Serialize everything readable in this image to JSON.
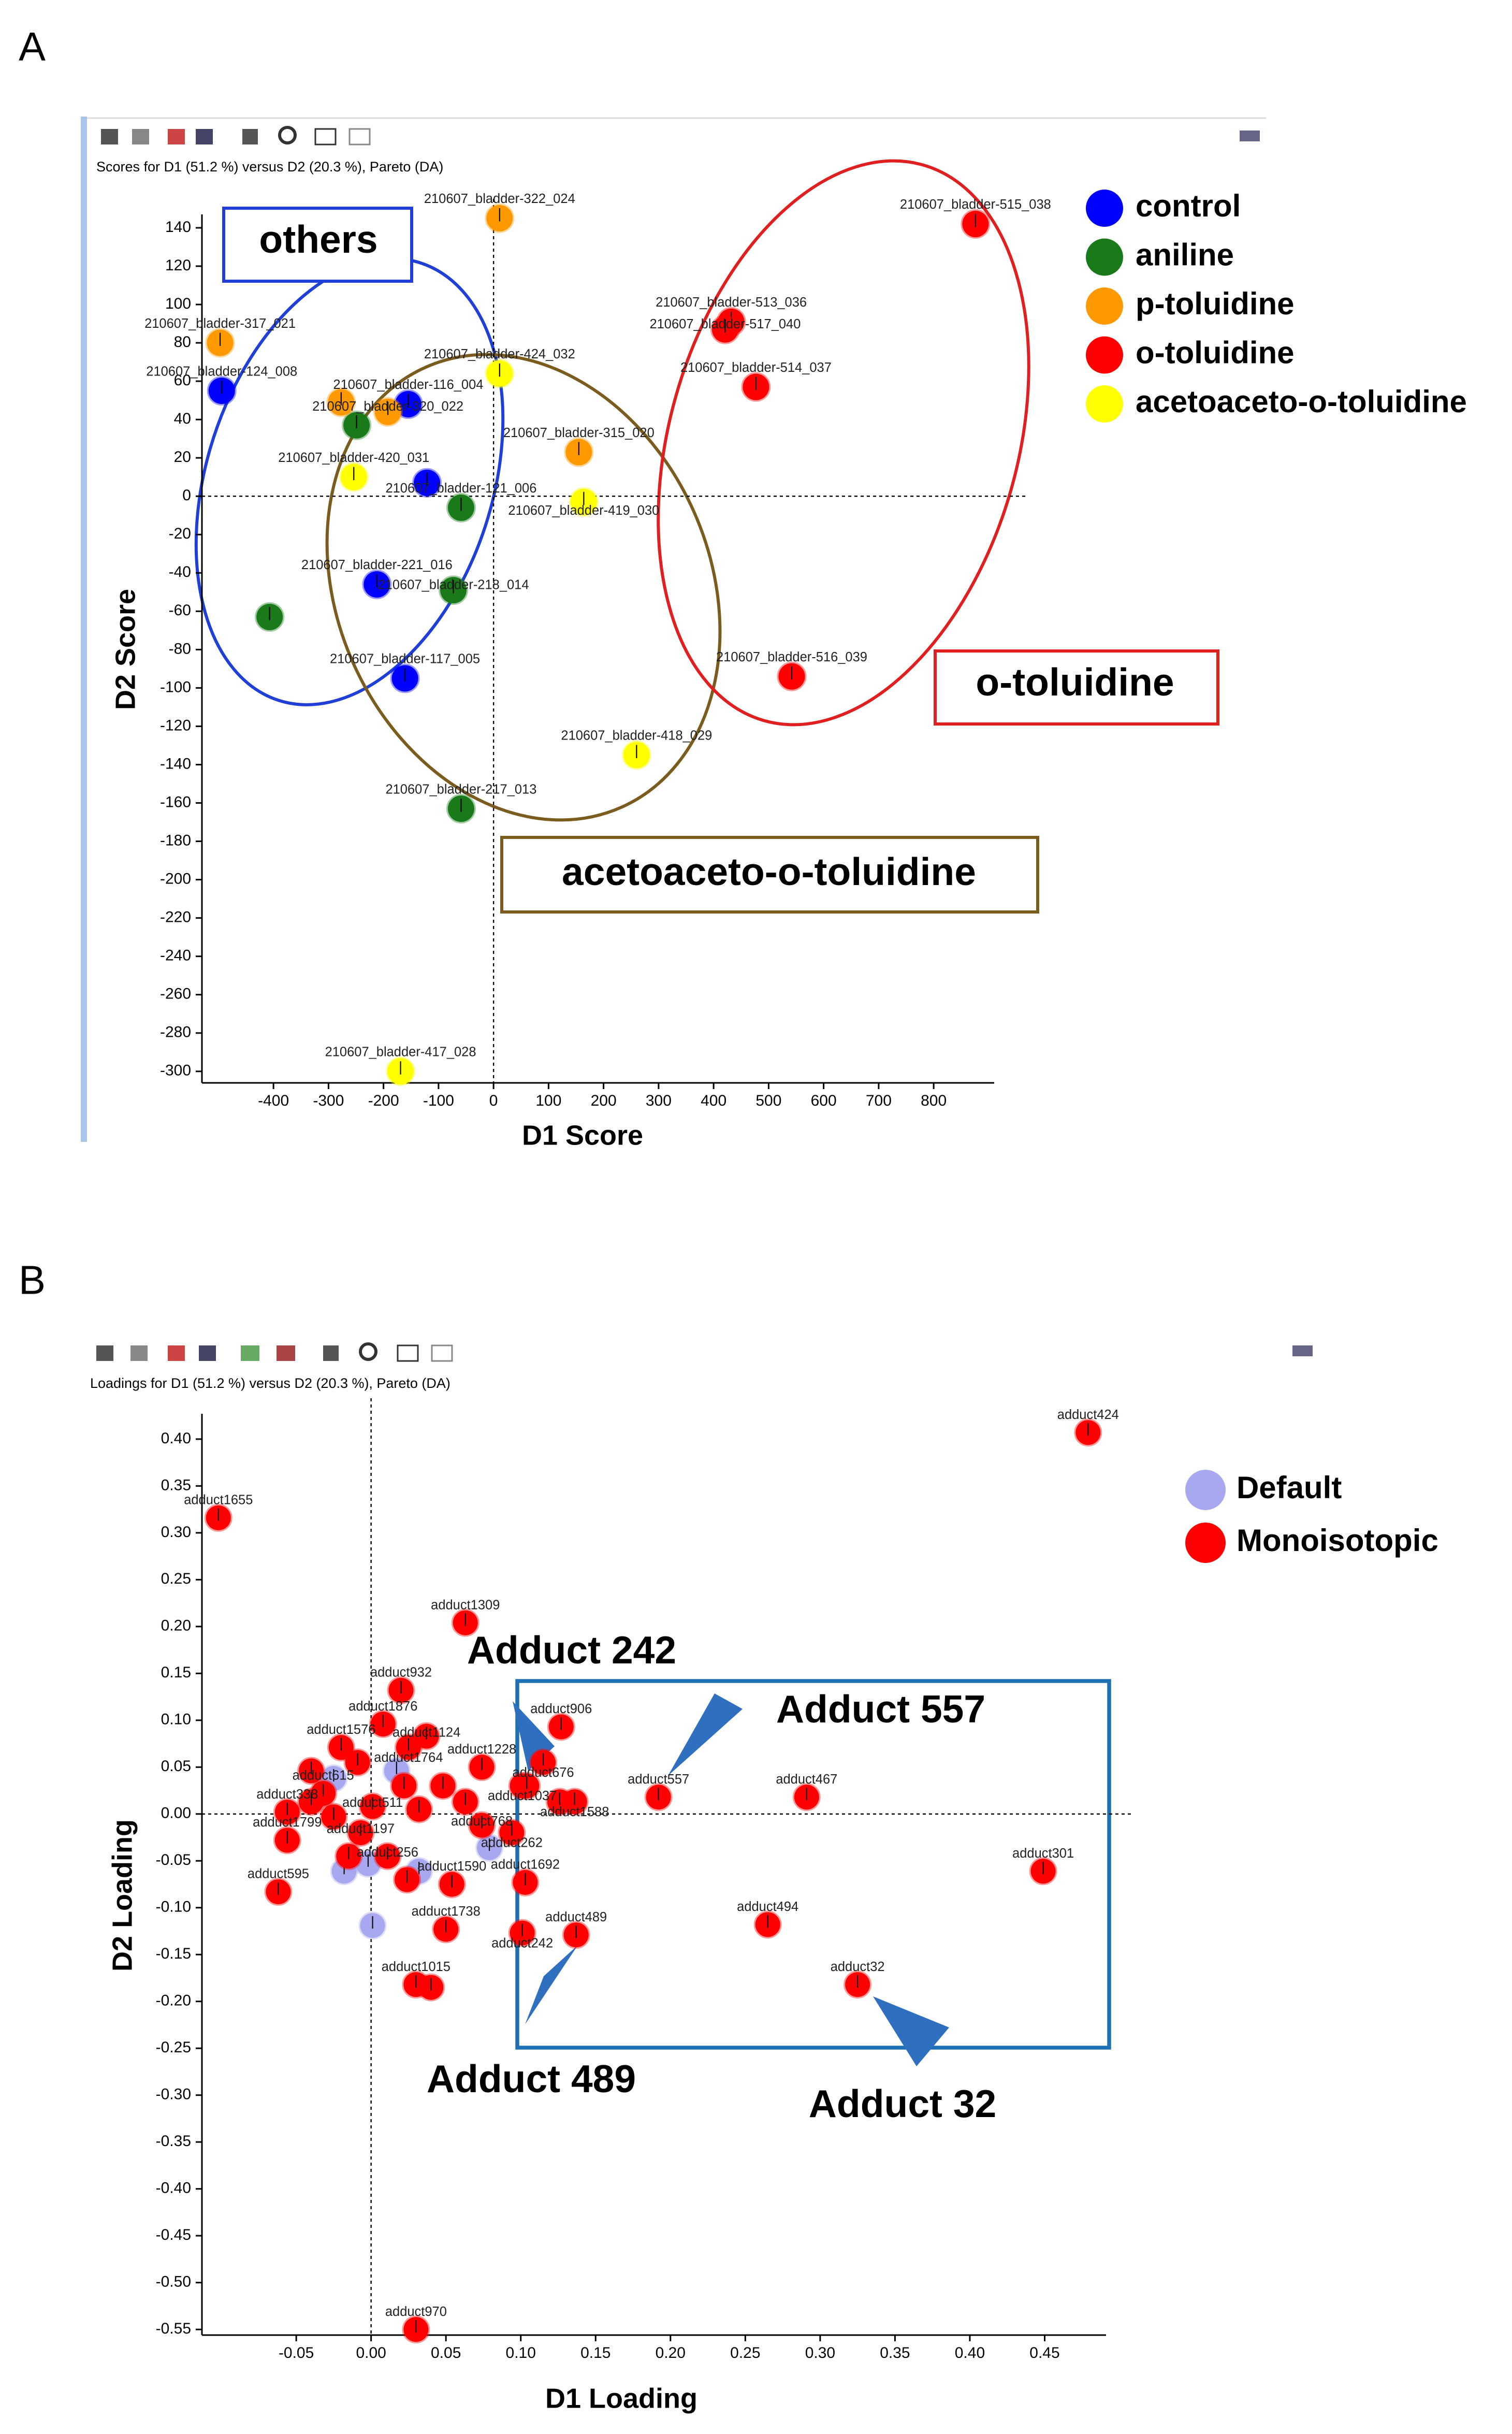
{
  "chart_data": [
    {
      "type": "scatter",
      "panel": "A",
      "subtitle": "Scores for D1 (51.2 %) versus D2 (20.3 %), Pareto (DA)",
      "x_label": "D1 Score",
      "y_label": "D2 Score",
      "xlim": [
        -530,
        910
      ],
      "ylim": [
        -306,
        147
      ],
      "xticks": [
        -400,
        -300,
        -200,
        -100,
        0,
        100,
        200,
        300,
        400,
        500,
        600,
        700,
        800
      ],
      "yticks": [
        140,
        120,
        100,
        80,
        60,
        40,
        20,
        0,
        -20,
        -40,
        -60,
        -80,
        -100,
        -120,
        -140,
        -160,
        -180,
        -200,
        -220,
        -240,
        -260,
        -280,
        -300
      ],
      "annotations": [
        "others",
        "o-toluidine",
        "acetoaceto-o-toluidine"
      ],
      "series": [
        {
          "name": "control",
          "color": "#0000ff",
          "x": [
            -494,
            -155,
            -121,
            -212,
            -161
          ],
          "y": [
            55,
            48,
            7,
            -46,
            -95
          ],
          "labels": [
            "210607_bladder-124_008",
            "210607_bladder-116_004",
            null,
            "210607_bladder-221_016",
            "210607_bladder-117_005"
          ]
        },
        {
          "name": "aniline",
          "color": "#1a7a1a",
          "x": [
            -249,
            -59,
            -73,
            -407,
            -59
          ],
          "y": [
            37,
            -6,
            -49,
            -63,
            -163
          ],
          "labels": [
            null,
            "210607_bladder-121_006",
            "210607_bladder-218_014",
            null,
            "210607_bladder-217_013"
          ]
        },
        {
          "name": "p-toluidine",
          "color": "#ff9900",
          "x": [
            11,
            -497,
            -277,
            -192,
            155
          ],
          "y": [
            145,
            80,
            49,
            44,
            23
          ],
          "labels": [
            "210607_bladder-322_024",
            "210607_bladder-317_021",
            null,
            "210607_bladder-320_022",
            "210607_bladder-315_020"
          ]
        },
        {
          "name": "o-toluidine",
          "color": "#ff0000",
          "x": [
            876,
            432,
            421,
            477,
            542
          ],
          "y": [
            142,
            91,
            87,
            57,
            -94
          ],
          "labels": [
            "210607_bladder-515_038",
            "210607_bladder-513_036",
            "210607_bladder-517_040",
            "210607_bladder-514_037",
            "210607_bladder-516_039"
          ]
        },
        {
          "name": "acetoaceto-o-toluidine",
          "color": "#ffff00",
          "x": [
            11,
            -254,
            164,
            260,
            -169
          ],
          "y": [
            64,
            10,
            -3,
            -135,
            -300
          ],
          "labels": [
            "210607_bladder-424_032",
            "210607_bladder-420_031",
            "210607_bladder-419_030",
            "210607_bladder-418_029",
            "210607_bladder-417_028"
          ]
        }
      ]
    },
    {
      "type": "scatter",
      "panel": "B",
      "subtitle": "Loadings for D1 (51.2 %) versus D2 (20.3 %), Pareto (DA)",
      "x_label": "D1 Loading",
      "y_label": "D2 Loading",
      "xlim": [
        -0.113,
        0.491
      ],
      "ylim": [
        -0.556,
        0.427
      ],
      "xticks": [
        -0.05,
        {
          "value": 0,
          "label": "0.00"
        },
        0.05,
        {
          "value": 0.1,
          "label": "0.10"
        },
        0.15,
        {
          "value": 0.2,
          "label": "0.20"
        },
        0.25,
        {
          "value": 0.3,
          "label": "0.30"
        },
        0.35,
        {
          "value": 0.4,
          "label": "0.40"
        },
        0.45
      ],
      "yticks": [
        {
          "value": 0.4,
          "label": "0.40"
        },
        0.35,
        {
          "value": 0.3,
          "label": "0.30"
        },
        0.25,
        {
          "value": 0.2,
          "label": "0.20"
        },
        0.15,
        {
          "value": 0.1,
          "label": "0.10"
        },
        0.05,
        {
          "value": 0,
          "label": "0.00"
        },
        -0.05,
        {
          "value": -0.1,
          "label": "-0.10"
        },
        -0.15,
        {
          "value": -0.2,
          "label": "-0.20"
        },
        -0.25,
        {
          "value": -0.3,
          "label": "-0.30"
        },
        -0.35,
        {
          "value": -0.4,
          "label": "-0.40"
        },
        -0.45,
        {
          "value": -0.5,
          "label": "-0.50"
        },
        -0.55
      ],
      "annotations": [
        "Adduct 242",
        "Adduct 557",
        "Adduct 489",
        "Adduct 32"
      ],
      "series": [
        {
          "name": "Default",
          "color": "#a8a8f0",
          "x": [
            -0.018,
            0.001,
            0.079,
            0.032,
            -0.025,
            0.017,
            -0.002
          ],
          "y": [
            -0.061,
            -0.119,
            -0.036,
            -0.061,
            0.038,
            0.046,
            -0.053
          ],
          "labels": [
            null,
            null,
            null,
            null,
            null,
            null,
            null
          ]
        },
        {
          "name": "Monoisotopic",
          "color": "#ff0000",
          "x": [
            0.479,
            -0.102,
            0.063,
            0.02,
            0.127,
            0.008,
            0.037,
            -0.02,
            0.025,
            0.074,
            0.115,
            0.101,
            0.192,
            0.291,
            0.136,
            -0.032,
            -0.056,
            0.001,
            -0.007,
            0.074,
            0.094,
            -0.056,
            0.011,
            0.103,
            -0.062,
            0.054,
            0.449,
            0.137,
            0.101,
            0.265,
            0.05,
            0.03,
            0.325,
            0.03,
            -0.04,
            -0.009,
            0.022,
            0.048,
            -0.025,
            0.032,
            0.063,
            -0.015,
            0.024,
            0.104,
            0.126,
            0.04,
            -0.04
          ],
          "y": [
            0.407,
            0.316,
            0.204,
            0.132,
            0.093,
            0.096,
            0.083,
            0.071,
            0.071,
            0.05,
            0.055,
            0.03,
            0.018,
            0.018,
            0.013,
            0.022,
            0.002,
            0.008,
            -0.02,
            -0.012,
            -0.02,
            -0.028,
            -0.045,
            -0.073,
            -0.083,
            -0.075,
            -0.061,
            -0.129,
            -0.127,
            -0.118,
            -0.123,
            -0.182,
            -0.182,
            -0.55,
            0.046,
            0.055,
            0.03,
            0.03,
            -0.003,
            0.005,
            0.013,
            -0.045,
            -0.07,
            0.03,
            0.013,
            -0.185,
            0.013
          ],
          "labels": [
            "adduct424",
            "adduct1655",
            "adduct1309",
            "adduct932",
            "adduct906",
            "adduct1876",
            "adduct1124",
            "adduct1576",
            "adduct1764",
            "adduct1228",
            "adduct676",
            "adduct1037",
            "adduct557",
            "adduct467",
            "adduct1588",
            "adduct615",
            "adduct338",
            "adduct511",
            "adduct1197",
            "adduct768",
            "adduct262",
            "adduct1799",
            "adduct256",
            "adduct1692",
            "adduct595",
            "adduct1590",
            "adduct301",
            "adduct489",
            "adduct242",
            "adduct494",
            "adduct1738",
            "adduct1015",
            "adduct32",
            "adduct970",
            null,
            null,
            null,
            null,
            null,
            null,
            null,
            null,
            null,
            null,
            null,
            null,
            null
          ]
        }
      ]
    }
  ]
}
